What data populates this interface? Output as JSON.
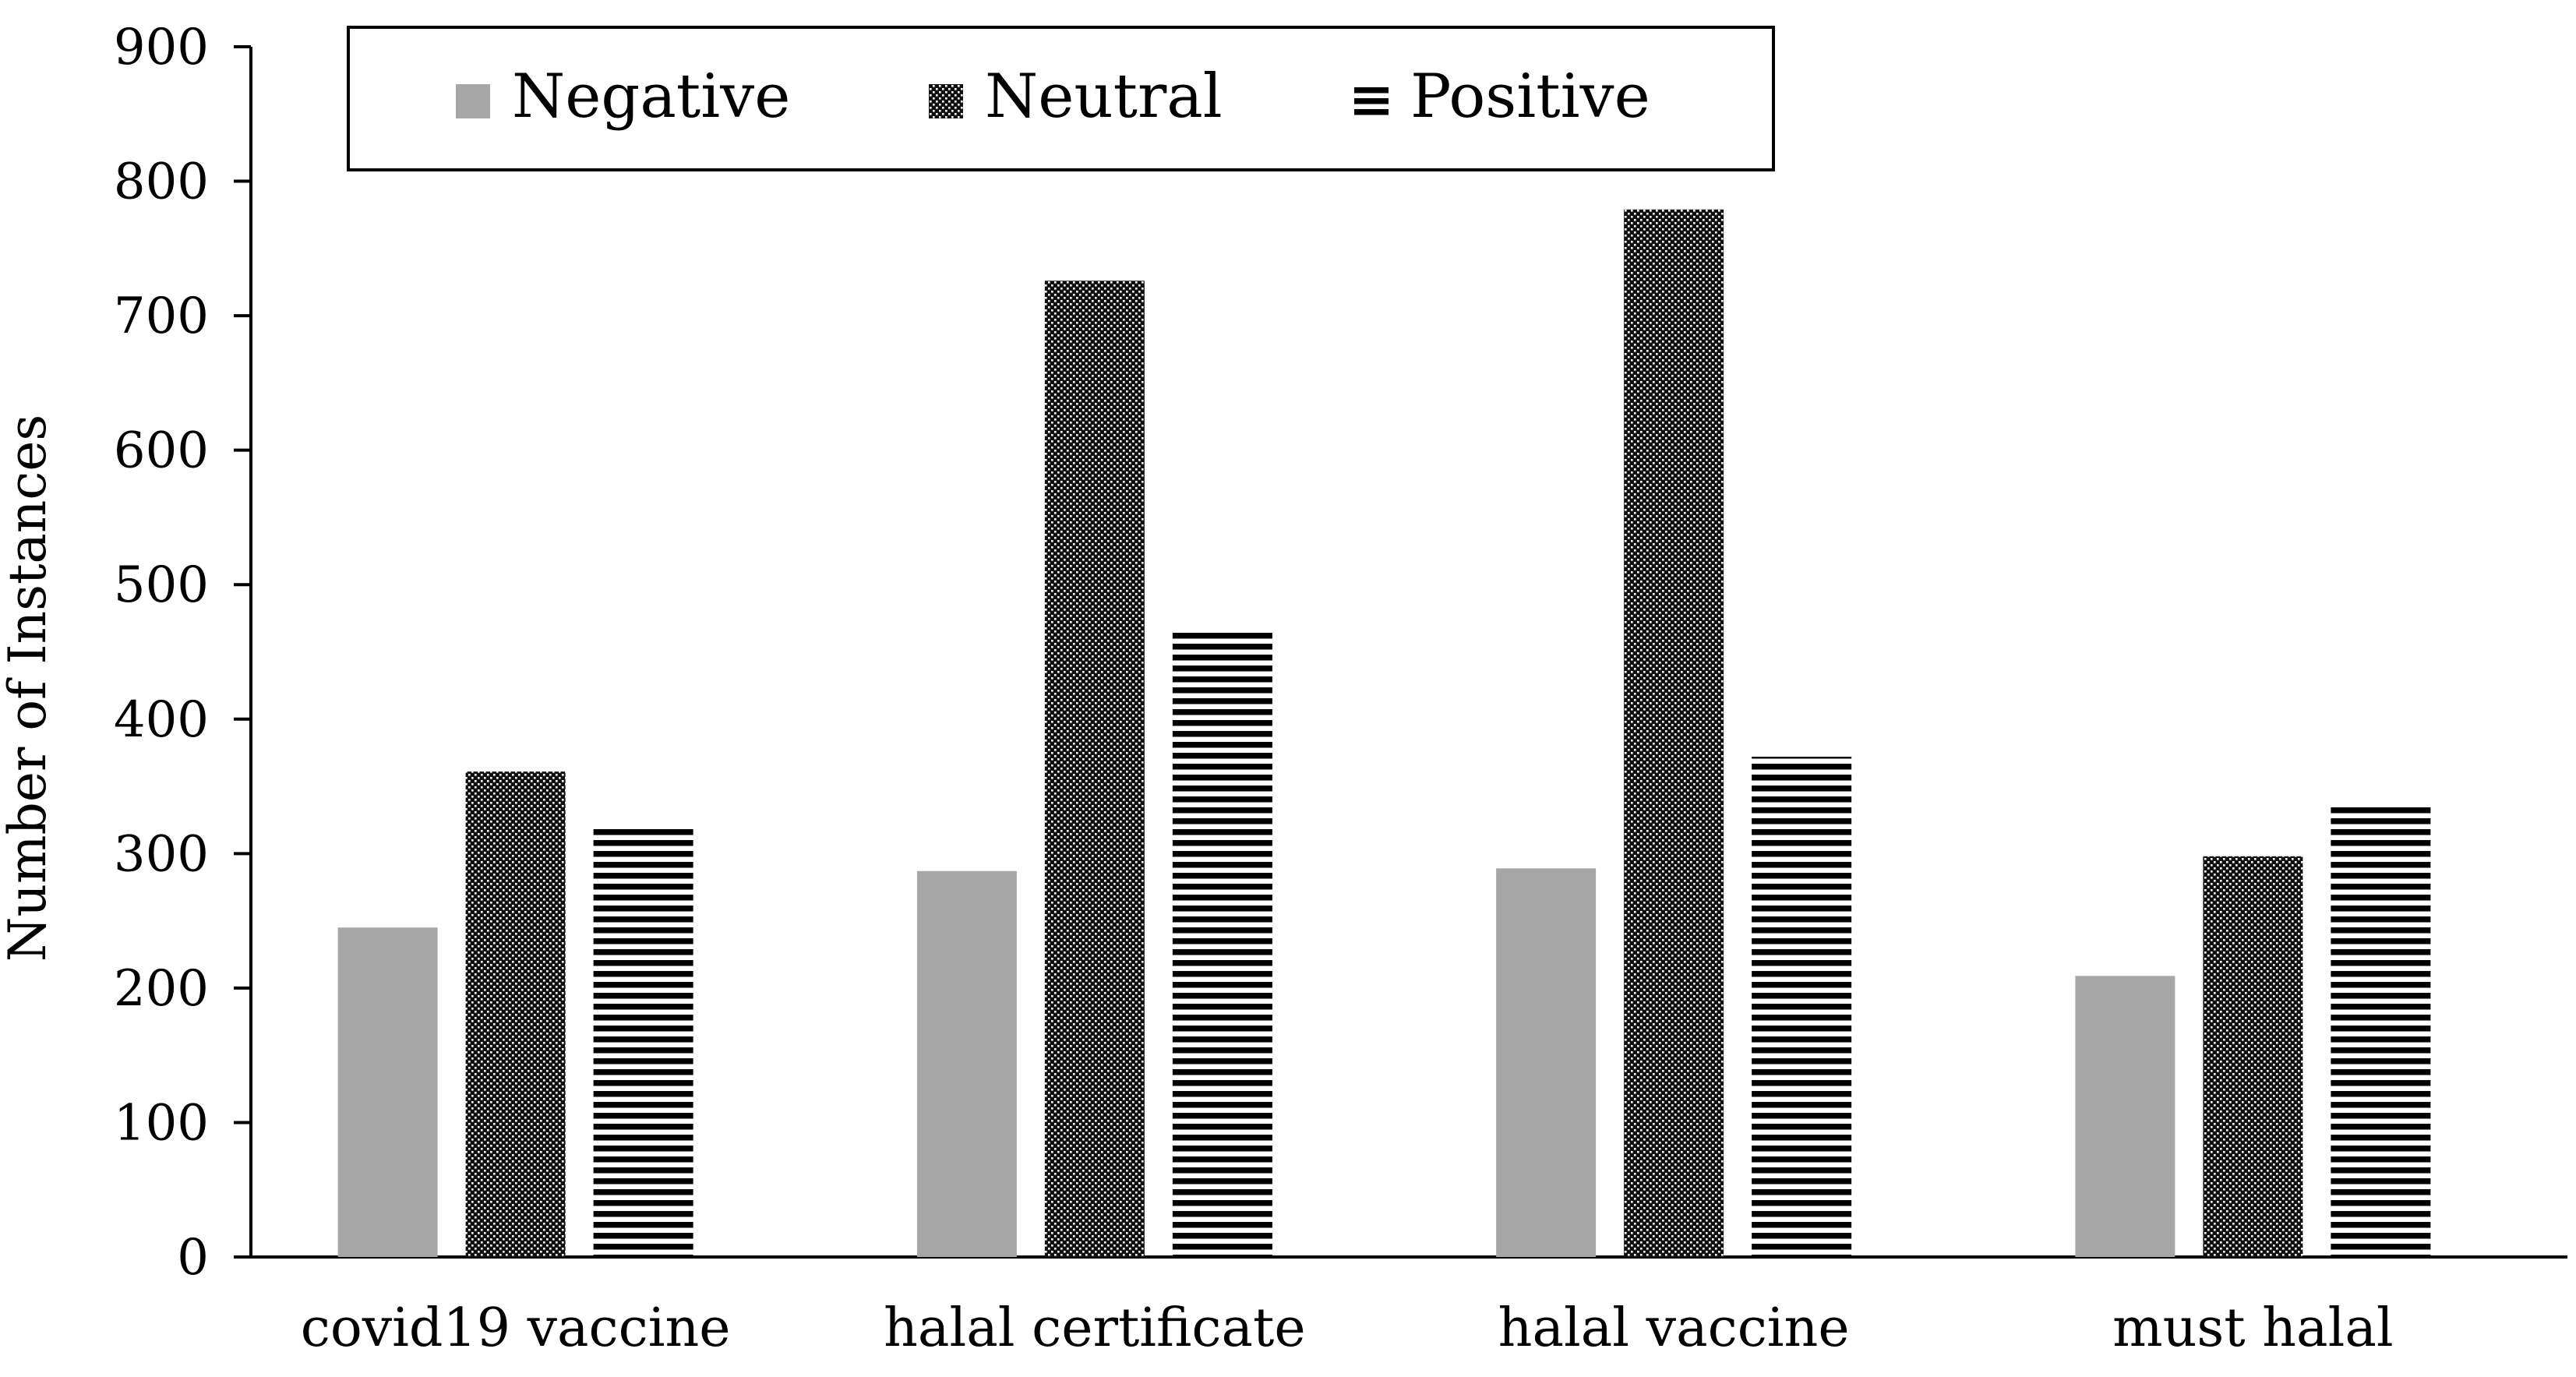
{
  "chart_data": {
    "type": "bar",
    "title": "",
    "xlabel": "",
    "ylabel": "Number of Instances",
    "ylim": [
      0,
      900
    ],
    "yticks": [
      0,
      100,
      200,
      300,
      400,
      500,
      600,
      700,
      800,
      900
    ],
    "grid": false,
    "legend_position": "top",
    "categories": [
      "covid19 vaccine",
      "halal certificate",
      "halal vaccine",
      "must halal"
    ],
    "series": [
      {
        "name": "Negative",
        "pattern": "solid-gray",
        "color": "#a6a6a6",
        "values": [
          245,
          287,
          289,
          209
        ]
      },
      {
        "name": "Neutral",
        "pattern": "dotted-dark",
        "color": "#1a1a1a",
        "values": [
          361,
          726,
          779,
          298
        ]
      },
      {
        "name": "Positive",
        "pattern": "horizontal-stripes",
        "color": "#000000",
        "values": [
          321,
          467,
          372,
          335
        ]
      }
    ]
  }
}
